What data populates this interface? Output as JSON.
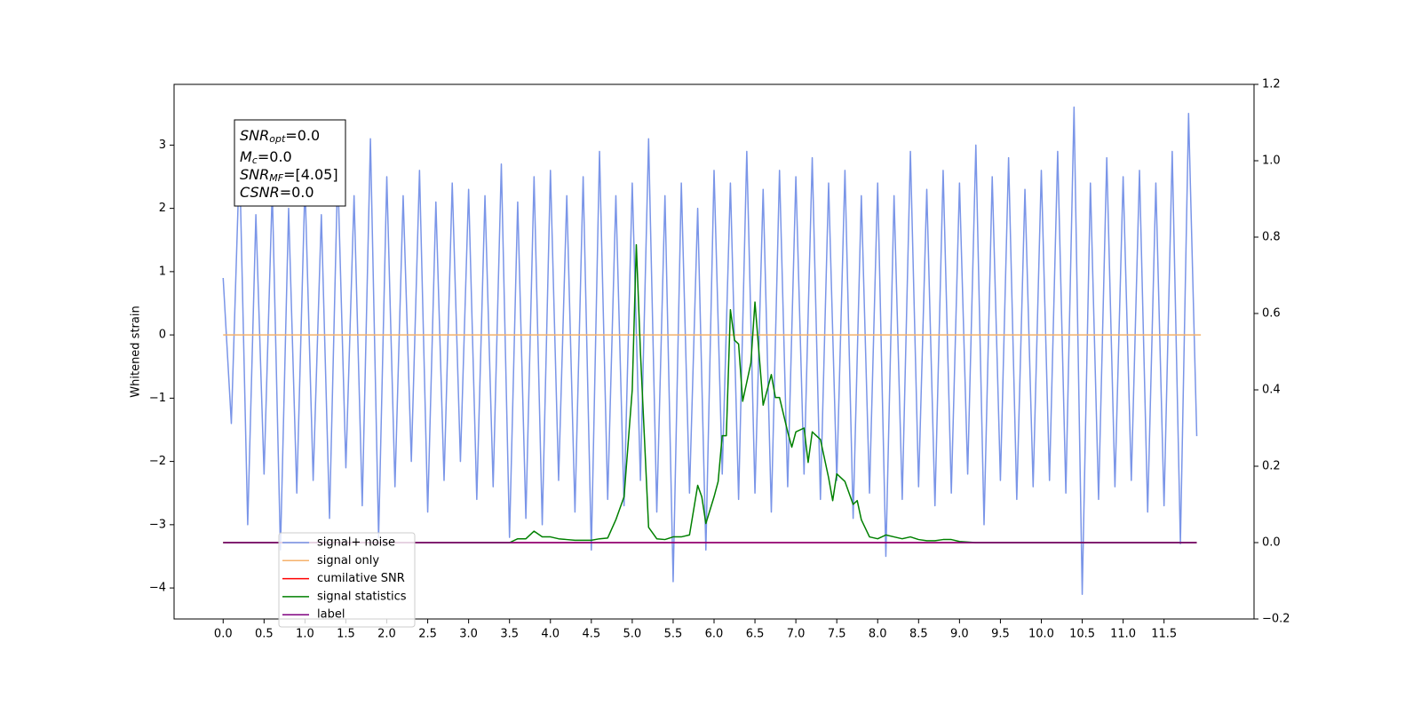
{
  "chart_data": {
    "type": "line",
    "y_label": "Whitened strain",
    "xlim": [
      -0.6,
      12.6
    ],
    "ylim": [
      -4.49,
      3.96
    ],
    "y2lim": [
      -0.2,
      1.2
    ],
    "xticks": [
      {
        "value": 0,
        "label": "0.0"
      },
      0.5,
      {
        "value": 1,
        "label": "1.0"
      },
      1.5,
      {
        "value": 2,
        "label": "2.0"
      },
      2.5,
      {
        "value": 3,
        "label": "3.0"
      },
      3.5,
      {
        "value": 4,
        "label": "4.0"
      },
      4.5,
      {
        "value": 5,
        "label": "5.0"
      },
      5.5,
      {
        "value": 6,
        "label": "6.0"
      },
      6.5,
      {
        "value": 7,
        "label": "7.0"
      },
      7.5,
      {
        "value": 8,
        "label": "8.0"
      },
      8.5,
      {
        "value": 9,
        "label": "9.0"
      },
      9.5,
      {
        "value": 10,
        "label": "10.0"
      },
      10.5,
      {
        "value": 11,
        "label": "11.0"
      },
      11.5
    ],
    "yticks": [
      {
        "value": -4,
        "label": "−4"
      },
      {
        "value": -3,
        "label": "−3"
      },
      {
        "value": -2,
        "label": "−2"
      },
      {
        "value": -1,
        "label": "−1"
      },
      0,
      1,
      2,
      3
    ],
    "y2ticks": [
      {
        "value": -0.2,
        "label": "−0.2"
      },
      {
        "value": 0,
        "label": "0.0"
      },
      0.2,
      0.4,
      0.6,
      0.8,
      {
        "value": 1,
        "label": "1.0"
      },
      1.2
    ],
    "legend": "lower left",
    "annotation": [
      {
        "main": "SNR",
        "sub": "opt",
        "rest": "=0.0"
      },
      {
        "main": "M",
        "sub": "c",
        "rest": "=0.0"
      },
      {
        "main": "SNR",
        "sub": "MF",
        "rest": "=[4.05]"
      },
      {
        "main": "CSNR",
        "rest": "=0.0"
      }
    ],
    "series": [
      {
        "name": "signal+ noise",
        "color": "#7a95e8",
        "x": [
          0,
          0.1,
          0.2,
          0.3,
          0.4,
          0.5,
          0.6,
          0.7,
          0.8,
          0.9,
          1,
          1.1,
          1.2,
          1.3,
          1.4,
          1.5,
          1.6,
          1.7,
          1.8,
          1.9,
          2,
          2.1,
          2.2,
          2.3,
          2.4,
          2.5,
          2.6,
          2.7,
          2.8,
          2.9,
          3,
          3.1,
          3.2,
          3.3,
          3.4,
          3.5,
          3.6,
          3.7,
          3.8,
          3.9,
          4,
          4.1,
          4.2,
          4.3,
          4.4,
          4.5,
          4.6,
          4.7,
          4.8,
          4.9,
          5,
          5.1,
          5.2,
          5.3,
          5.4,
          5.5,
          5.6,
          5.7,
          5.8,
          5.9,
          6,
          6.1,
          6.2,
          6.3,
          6.4,
          6.5,
          6.6,
          6.7,
          6.8,
          6.9,
          7,
          7.1,
          7.2,
          7.3,
          7.4,
          7.5,
          7.6,
          7.7,
          7.8,
          7.9,
          8,
          8.1,
          8.2,
          8.3,
          8.4,
          8.5,
          8.6,
          8.7,
          8.8,
          8.9,
          9,
          9.1,
          9.2,
          9.3,
          9.4,
          9.5,
          9.6,
          9.7,
          9.8,
          9.9,
          10,
          10.1,
          10.2,
          10.3,
          10.4,
          10.5,
          10.6,
          10.7,
          10.8,
          10.9,
          11,
          11.1,
          11.2,
          11.3,
          11.4,
          11.5,
          11.6,
          11.7,
          11.8,
          11.9
        ],
        "values": [
          0.9,
          -1.4,
          2.8,
          -3.0,
          1.9,
          -2.2,
          2.3,
          -3.4,
          2.0,
          -2.5,
          2.4,
          -2.3,
          1.9,
          -2.9,
          2.6,
          -2.1,
          2.2,
          -2.7,
          3.1,
          -3.2,
          2.5,
          -2.4,
          2.2,
          -2.0,
          2.6,
          -2.8,
          2.1,
          -2.3,
          2.4,
          -2.0,
          2.3,
          -2.6,
          2.2,
          -2.4,
          2.7,
          -3.2,
          2.1,
          -2.9,
          2.5,
          -3.0,
          2.6,
          -2.3,
          2.2,
          -2.8,
          2.5,
          -3.4,
          2.9,
          -2.6,
          2.2,
          -2.7,
          2.4,
          -2.3,
          3.1,
          -2.8,
          2.2,
          -3.9,
          2.4,
          -2.5,
          2.0,
          -3.4,
          2.6,
          -2.2,
          2.4,
          -2.6,
          2.9,
          -2.5,
          2.3,
          -2.8,
          2.6,
          -2.4,
          2.5,
          -2.2,
          2.8,
          -2.6,
          2.4,
          -2.3,
          2.6,
          -2.9,
          2.2,
          -2.5,
          2.4,
          -3.5,
          2.2,
          -2.6,
          2.9,
          -2.4,
          2.3,
          -2.7,
          2.6,
          -2.5,
          2.4,
          -2.2,
          3.0,
          -3.0,
          2.5,
          -2.3,
          2.8,
          -2.6,
          2.3,
          -2.4,
          2.6,
          -2.3,
          2.9,
          -2.5,
          3.6,
          -4.1,
          2.4,
          -2.6,
          2.8,
          -2.4,
          2.5,
          -2.3,
          2.6,
          -2.8,
          2.4,
          -2.7,
          2.9,
          -3.3,
          3.5,
          -1.6
        ]
      },
      {
        "name": "signal only",
        "color": "#f5b26b",
        "x": [
          0,
          11.95
        ],
        "values": [
          0,
          0
        ]
      },
      {
        "name": "cumilative SNR",
        "color": "#ff0000",
        "axis": "y2",
        "x": [
          0,
          11.9
        ],
        "values": [
          0,
          0
        ]
      },
      {
        "name": "signal statistics",
        "color": "#008000",
        "axis": "y2",
        "x": [
          0,
          3.5,
          3.6,
          3.7,
          3.8,
          3.9,
          4.0,
          4.1,
          4.2,
          4.3,
          4.4,
          4.5,
          4.6,
          4.7,
          4.8,
          4.9,
          5.0,
          5.05,
          5.1,
          5.2,
          5.3,
          5.4,
          5.5,
          5.6,
          5.7,
          5.8,
          5.85,
          5.9,
          6.0,
          6.05,
          6.1,
          6.15,
          6.2,
          6.25,
          6.3,
          6.35,
          6.45,
          6.5,
          6.6,
          6.7,
          6.75,
          6.8,
          6.9,
          6.95,
          7.0,
          7.1,
          7.15,
          7.2,
          7.3,
          7.4,
          7.45,
          7.5,
          7.6,
          7.7,
          7.75,
          7.8,
          7.9,
          8.0,
          8.1,
          8.2,
          8.3,
          8.4,
          8.5,
          8.6,
          8.7,
          8.8,
          8.9,
          9.0,
          9.2,
          11.9
        ],
        "values": [
          0,
          0,
          0.01,
          0.01,
          0.03,
          0.015,
          0.015,
          0.01,
          0.008,
          0.006,
          0.006,
          0.006,
          0.01,
          0.012,
          0.06,
          0.12,
          0.4,
          0.78,
          0.5,
          0.04,
          0.01,
          0.008,
          0.015,
          0.015,
          0.02,
          0.15,
          0.12,
          0.05,
          0.12,
          0.16,
          0.28,
          0.28,
          0.61,
          0.53,
          0.52,
          0.37,
          0.47,
          0.63,
          0.36,
          0.44,
          0.38,
          0.38,
          0.29,
          0.25,
          0.29,
          0.3,
          0.21,
          0.29,
          0.27,
          0.17,
          0.11,
          0.18,
          0.16,
          0.1,
          0.11,
          0.06,
          0.015,
          0.01,
          0.02,
          0.015,
          0.01,
          0.015,
          0.008,
          0.005,
          0.005,
          0.008,
          0.008,
          0.003,
          0,
          0
        ]
      },
      {
        "name": "label",
        "color": "#800080",
        "axis": "y2",
        "x": [
          0,
          11.9
        ],
        "values": [
          0,
          0
        ]
      }
    ]
  }
}
